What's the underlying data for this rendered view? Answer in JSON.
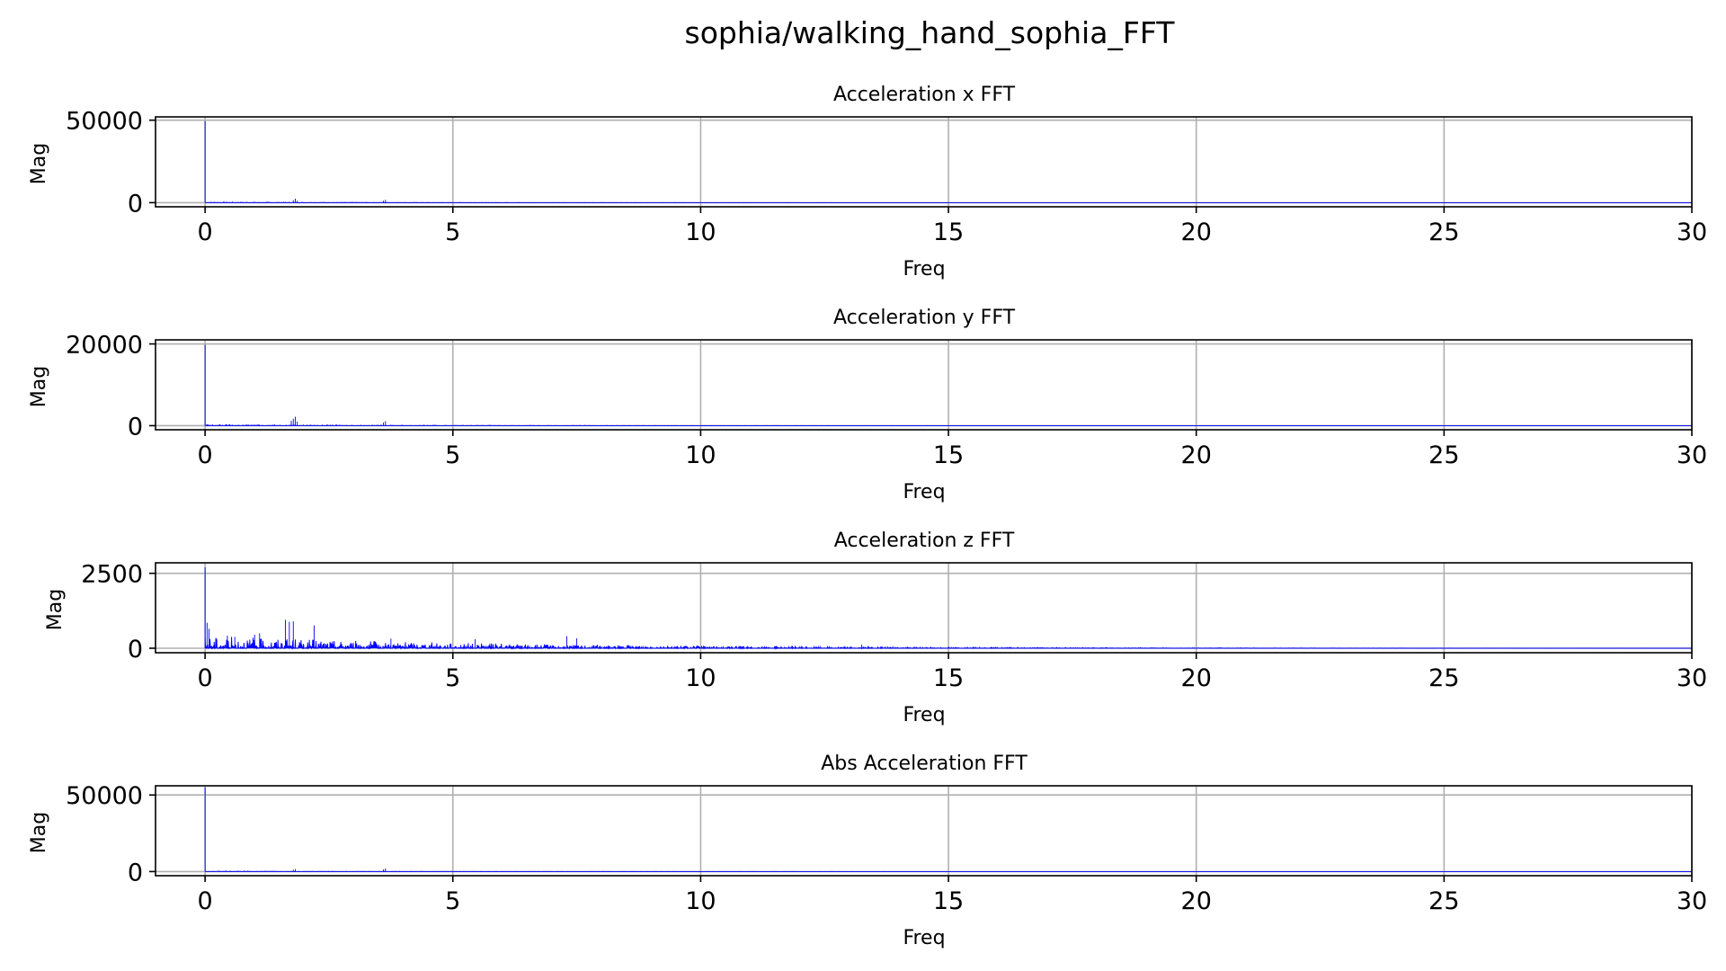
{
  "chart_data": {
    "suptitle": "sophia/walking_hand_sophia_FFT",
    "line_color": "#0000ff",
    "grid": true,
    "subplots": [
      {
        "type": "line",
        "title": "Acceleration x FFT",
        "xlabel": "Freq",
        "ylabel": "Mag",
        "xlim": [
          -1,
          30
        ],
        "ylim": [
          -2500,
          52000
        ],
        "xticks": [
          0,
          5,
          10,
          15,
          20,
          25,
          30
        ],
        "yticks": [
          0,
          50000
        ],
        "peaks": [
          {
            "x": 0.0,
            "y": 49500
          },
          {
            "x": 1.78,
            "y": 1500
          },
          {
            "x": 1.82,
            "y": 2400
          },
          {
            "x": 1.86,
            "y": 1200
          },
          {
            "x": 3.6,
            "y": 1200
          },
          {
            "x": 3.64,
            "y": 1700
          }
        ],
        "noise_level": 400,
        "noise_decay": 4
      },
      {
        "type": "line",
        "title": "Acceleration y FFT",
        "xlabel": "Freq",
        "ylabel": "Mag",
        "xlim": [
          -1,
          30
        ],
        "ylim": [
          -1000,
          21000
        ],
        "xticks": [
          0,
          5,
          10,
          15,
          20,
          25,
          30
        ],
        "yticks": [
          0,
          20000
        ],
        "peaks": [
          {
            "x": 0.0,
            "y": 19800
          },
          {
            "x": 1.74,
            "y": 1200
          },
          {
            "x": 1.78,
            "y": 1700
          },
          {
            "x": 1.82,
            "y": 2200
          },
          {
            "x": 1.86,
            "y": 1000
          },
          {
            "x": 3.6,
            "y": 800
          },
          {
            "x": 3.64,
            "y": 1100
          }
        ],
        "noise_level": 250,
        "noise_decay": 5
      },
      {
        "type": "line",
        "title": "Acceleration z FFT",
        "xlabel": "Freq",
        "ylabel": "Mag",
        "xlim": [
          -1,
          30
        ],
        "ylim": [
          -150,
          2850
        ],
        "xticks": [
          0,
          5,
          10,
          15,
          20,
          25,
          30
        ],
        "yticks": [
          0,
          2500
        ],
        "peaks": [
          {
            "x": 0.0,
            "y": 2700
          },
          {
            "x": 0.04,
            "y": 850
          },
          {
            "x": 0.08,
            "y": 650
          },
          {
            "x": 0.45,
            "y": 420
          },
          {
            "x": 0.6,
            "y": 380
          },
          {
            "x": 1.0,
            "y": 450
          },
          {
            "x": 1.1,
            "y": 500
          },
          {
            "x": 1.62,
            "y": 950
          },
          {
            "x": 1.7,
            "y": 880
          },
          {
            "x": 1.78,
            "y": 900
          },
          {
            "x": 2.2,
            "y": 760
          },
          {
            "x": 3.75,
            "y": 320
          },
          {
            "x": 5.45,
            "y": 300
          },
          {
            "x": 7.3,
            "y": 400
          },
          {
            "x": 7.5,
            "y": 330
          },
          {
            "x": 13.25,
            "y": 120
          }
        ],
        "noise_level": 420,
        "noise_decay": 6
      },
      {
        "type": "line",
        "title": "Abs Acceleration FFT",
        "xlabel": "Freq",
        "ylabel": "Mag",
        "xlim": [
          -1,
          30
        ],
        "ylim": [
          -2700,
          56000
        ],
        "xticks": [
          0,
          5,
          10,
          15,
          20,
          25,
          30
        ],
        "yticks": [
          0,
          50000
        ],
        "peaks": [
          {
            "x": 0.0,
            "y": 55000
          },
          {
            "x": 1.78,
            "y": 1200
          },
          {
            "x": 1.82,
            "y": 1600
          },
          {
            "x": 3.6,
            "y": 1400
          },
          {
            "x": 3.64,
            "y": 2000
          }
        ],
        "noise_level": 350,
        "noise_decay": 4
      }
    ]
  }
}
